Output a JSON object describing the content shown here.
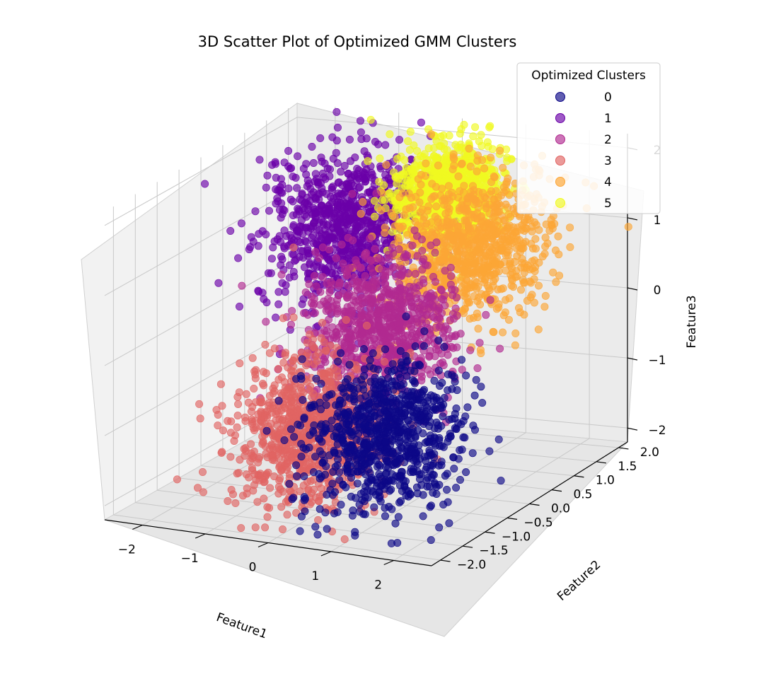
{
  "chart_data": {
    "type": "scatter",
    "title": "3D Scatter Plot of Optimized GMM Clusters",
    "xlabel": "Feature1",
    "ylabel": "Feature2",
    "zlabel": "Feature3",
    "xlim": [
      -2.6,
      2.6
    ],
    "ylim": [
      -2.2,
      2.2
    ],
    "zlim": [
      -2.2,
      2.2
    ],
    "x_ticks": [
      -2,
      -1,
      0,
      1,
      2
    ],
    "y_ticks": [
      -2.0,
      -1.5,
      -1.0,
      -0.5,
      0.0,
      0.5,
      1.0,
      1.5,
      2.0
    ],
    "z_ticks": [
      -2,
      -1,
      0,
      1,
      2
    ],
    "x_tick_labels": [
      "−2",
      "−1",
      "0",
      "1",
      "2"
    ],
    "y_tick_labels": [
      "−2.0",
      "−1.5",
      "−1.0",
      "−0.5",
      "0.0",
      "0.5",
      "1.0",
      "1.5",
      "2.0"
    ],
    "z_tick_labels": [
      "−2",
      "−1",
      "0",
      "1",
      "2"
    ],
    "grid": true,
    "legend": {
      "title": "Optimized Clusters",
      "placement": "top-right",
      "entries": [
        {
          "label": "0",
          "color": "#0d0887"
        },
        {
          "label": "1",
          "color": "#6a00a8"
        },
        {
          "label": "2",
          "color": "#b12a90"
        },
        {
          "label": "3",
          "color": "#e16462"
        },
        {
          "label": "4",
          "color": "#fca636"
        },
        {
          "label": "5",
          "color": "#f0f921"
        }
      ]
    },
    "series": [
      {
        "name": "0",
        "color": "#0d0887",
        "center": [
          1.0,
          -1.0,
          -1.0
        ],
        "spread": 0.5
      },
      {
        "name": "1",
        "color": "#6a00a8",
        "center": [
          -1.0,
          1.0,
          1.0
        ],
        "spread": 0.5
      },
      {
        "name": "2",
        "color": "#b12a90",
        "center": [
          0.3,
          -0.1,
          0.1
        ],
        "spread": 0.5
      },
      {
        "name": "3",
        "color": "#e16462",
        "center": [
          -0.3,
          -0.9,
          -1.1
        ],
        "spread": 0.5
      },
      {
        "name": "4",
        "color": "#fca636",
        "center": [
          1.0,
          1.0,
          0.9
        ],
        "spread": 0.5
      },
      {
        "name": "5",
        "color": "#f0f921",
        "center": [
          0.4,
          1.3,
          1.5
        ],
        "spread": 0.35
      }
    ]
  }
}
